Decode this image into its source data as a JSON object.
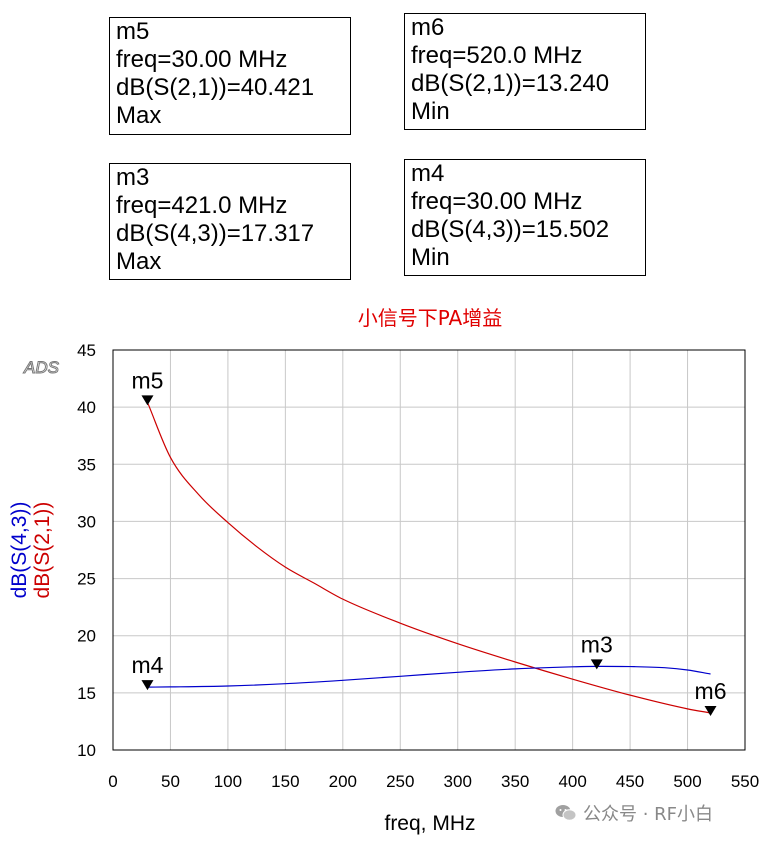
{
  "markers": [
    {
      "id": "m5",
      "name": "m5",
      "freq_text": "freq=30.00 MHz",
      "value_text": "dB(S(2,1))=40.421",
      "mode": "Max"
    },
    {
      "id": "m6",
      "name": "m6",
      "freq_text": "freq=520.0 MHz",
      "value_text": "dB(S(2,1))=13.240",
      "mode": "Min"
    },
    {
      "id": "m3",
      "name": "m3",
      "freq_text": "freq=421.0 MHz",
      "value_text": "dB(S(4,3))=17.317",
      "mode": "Max"
    },
    {
      "id": "m4",
      "name": "m4",
      "freq_text": "freq=30.00 MHz",
      "value_text": "dB(S(4,3))=15.502",
      "mode": "Min"
    }
  ],
  "chart_data": {
    "type": "line",
    "title": "小信号下PA增益",
    "logo": "ADS",
    "xlabel": "freq, MHz",
    "ylabels": [
      "dB(S(4,3))",
      "dB(S(2,1))"
    ],
    "xlim": [
      0,
      550
    ],
    "ylim": [
      10,
      45
    ],
    "xticks": [
      0,
      50,
      100,
      150,
      200,
      250,
      300,
      350,
      400,
      450,
      500,
      550
    ],
    "yticks": [
      10,
      15,
      20,
      25,
      30,
      35,
      40,
      45
    ],
    "grid": true,
    "series": [
      {
        "name": "dB(S(2,1))",
        "color": "#cc0000",
        "x": [
          30,
          50,
          75,
          100,
          125,
          150,
          175,
          200,
          250,
          300,
          350,
          400,
          450,
          500,
          520
        ],
        "y": [
          40.421,
          35.6,
          32.3,
          29.9,
          27.8,
          26.0,
          24.6,
          23.2,
          21.1,
          19.3,
          17.7,
          16.2,
          14.8,
          13.6,
          13.24
        ]
      },
      {
        "name": "dB(S(4,3))",
        "color": "#0000cc",
        "x": [
          30,
          50,
          100,
          150,
          200,
          250,
          300,
          350,
          400,
          421,
          450,
          480,
          500,
          520
        ],
        "y": [
          15.502,
          15.52,
          15.6,
          15.8,
          16.1,
          16.45,
          16.8,
          17.1,
          17.28,
          17.317,
          17.3,
          17.2,
          17.0,
          16.65
        ]
      }
    ],
    "chart_markers": [
      {
        "name": "m5",
        "x": 30,
        "y": 40.421,
        "label_side": "above"
      },
      {
        "name": "m4",
        "x": 30,
        "y": 15.502,
        "label_side": "above"
      },
      {
        "name": "m3",
        "x": 421,
        "y": 17.317,
        "label_side": "above"
      },
      {
        "name": "m6",
        "x": 520,
        "y": 13.24,
        "label_side": "above-left"
      }
    ]
  },
  "watermark": {
    "text": "公众号 · RF小白",
    "icon": "wechat-icon"
  }
}
